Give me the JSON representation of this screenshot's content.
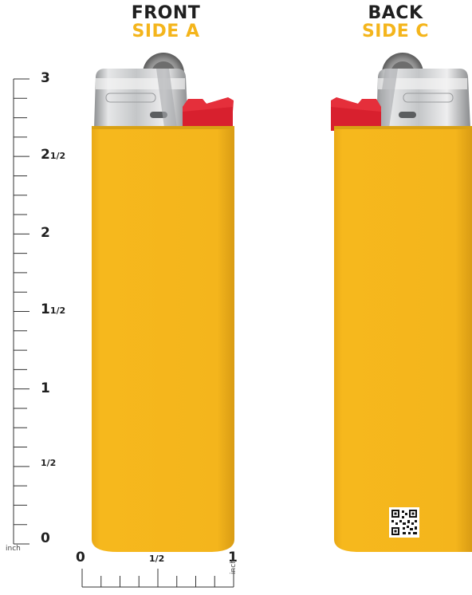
{
  "front": {
    "heading": "FRONT",
    "subheading": "SIDE A"
  },
  "back": {
    "heading": "BACK",
    "subheading": "SIDE C"
  },
  "vertical_ruler": {
    "unit": "inch",
    "labels": [
      {
        "whole": "3",
        "frac": ""
      },
      {
        "whole": "2",
        "frac": "1/2"
      },
      {
        "whole": "2",
        "frac": ""
      },
      {
        "whole": "1",
        "frac": "1/2"
      },
      {
        "whole": "1",
        "frac": ""
      },
      {
        "whole": "",
        "frac": "1/2"
      },
      {
        "whole": "0",
        "frac": ""
      }
    ]
  },
  "horizontal_ruler": {
    "unit": "inch",
    "labels": [
      "0",
      "1/2",
      "1"
    ]
  },
  "colors": {
    "body": "#f4b51c",
    "button": "#d8202e",
    "metal": "#c9cbcd",
    "text": "#1f1f1f"
  },
  "icons": [
    "qr-code-icon"
  ]
}
